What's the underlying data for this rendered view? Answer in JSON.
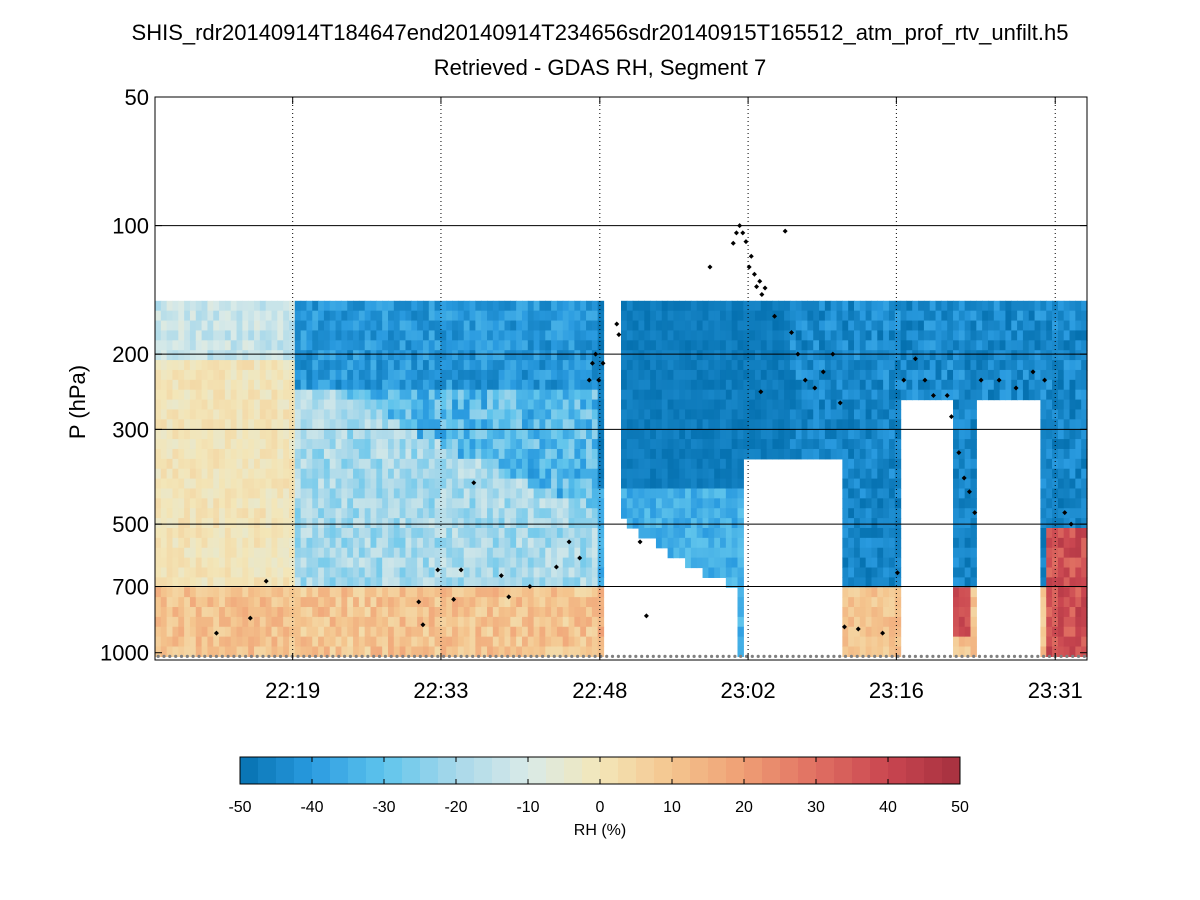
{
  "chart_data": {
    "type": "heatmap",
    "title": "SHIS_rdr20140914T184647end20140914T234656sdr20140915T165512_atm_prof_rtv_unfilt.h5",
    "subtitle": "Retrieved - GDAS RH, Segment 7",
    "ylabel": "P (hPa)",
    "y_scale": "log",
    "y_direction": "reversed",
    "ylim": [
      50,
      1040
    ],
    "y_ticks": [
      50,
      100,
      200,
      300,
      500,
      700,
      1000
    ],
    "y_grid_solid": [
      100,
      200,
      300,
      500,
      700
    ],
    "xlim_minutes": [
      1326.0,
      1414.0
    ],
    "x_ticks": [
      {
        "label": "22:19",
        "minutes": 1339
      },
      {
        "label": "22:33",
        "minutes": 1353
      },
      {
        "label": "22:48",
        "minutes": 1368
      },
      {
        "label": "23:02",
        "minutes": 1382
      },
      {
        "label": "23:16",
        "minutes": 1396
      },
      {
        "label": "23:31",
        "minutes": 1411
      }
    ],
    "field_top_hpa": 150,
    "surface_hpa": 1020,
    "colorbar": {
      "label": "RH (%)",
      "range": [
        -50,
        50
      ],
      "ticks": [
        -50,
        -40,
        -30,
        -20,
        -10,
        0,
        10,
        20,
        30,
        40,
        50
      ],
      "colors": [
        "#0571b0",
        "#2a9be0",
        "#5fc4ec",
        "#a8d8ea",
        "#d9eae8",
        "#f3e6b8",
        "#f4c58e",
        "#ef9e74",
        "#e06f62",
        "#c94650",
        "#a6303f"
      ]
    },
    "markers_black": [
      [
        1331.8,
        900
      ],
      [
        1335.0,
        830
      ],
      [
        1336.5,
        680
      ],
      [
        1350.9,
        760
      ],
      [
        1351.3,
        860
      ],
      [
        1352.7,
        640
      ],
      [
        1354.2,
        750
      ],
      [
        1354.9,
        640
      ],
      [
        1356.1,
        400
      ],
      [
        1358.7,
        660
      ],
      [
        1359.4,
        740
      ],
      [
        1361.4,
        700
      ],
      [
        1363.9,
        630
      ],
      [
        1365.1,
        550
      ],
      [
        1366.1,
        600
      ],
      [
        1367.0,
        230
      ],
      [
        1367.3,
        210
      ],
      [
        1367.6,
        200
      ],
      [
        1367.9,
        230
      ],
      [
        1368.3,
        210
      ],
      [
        1369.6,
        170
      ],
      [
        1369.8,
        180
      ],
      [
        1371.8,
        550
      ],
      [
        1372.4,
        820
      ],
      [
        1378.4,
        125
      ],
      [
        1380.6,
        110
      ],
      [
        1380.9,
        104
      ],
      [
        1381.2,
        100
      ],
      [
        1381.5,
        104
      ],
      [
        1381.8,
        109
      ],
      [
        1382.1,
        125
      ],
      [
        1382.3,
        118
      ],
      [
        1382.6,
        130
      ],
      [
        1382.8,
        139
      ],
      [
        1383.1,
        135
      ],
      [
        1383.3,
        145
      ],
      [
        1383.6,
        140
      ],
      [
        1384.5,
        163
      ],
      [
        1385.5,
        103
      ],
      [
        1383.2,
        245
      ],
      [
        1386.1,
        178
      ],
      [
        1386.7,
        200
      ],
      [
        1387.4,
        230
      ],
      [
        1388.3,
        240
      ],
      [
        1389.1,
        220
      ],
      [
        1390.0,
        200
      ],
      [
        1390.7,
        260
      ],
      [
        1391.1,
        870
      ],
      [
        1392.4,
        880
      ],
      [
        1394.7,
        900
      ],
      [
        1396.1,
        650
      ],
      [
        1396.7,
        230
      ],
      [
        1397.8,
        205
      ],
      [
        1398.7,
        230
      ],
      [
        1399.5,
        250
      ],
      [
        1400.8,
        250
      ],
      [
        1401.2,
        280
      ],
      [
        1401.9,
        340
      ],
      [
        1402.4,
        390
      ],
      [
        1402.9,
        420
      ],
      [
        1403.4,
        470
      ],
      [
        1404.0,
        230
      ],
      [
        1405.7,
        230
      ],
      [
        1407.3,
        240
      ],
      [
        1408.9,
        220
      ],
      [
        1410.0,
        230
      ],
      [
        1411.9,
        470
      ],
      [
        1412.5,
        500
      ]
    ]
  }
}
